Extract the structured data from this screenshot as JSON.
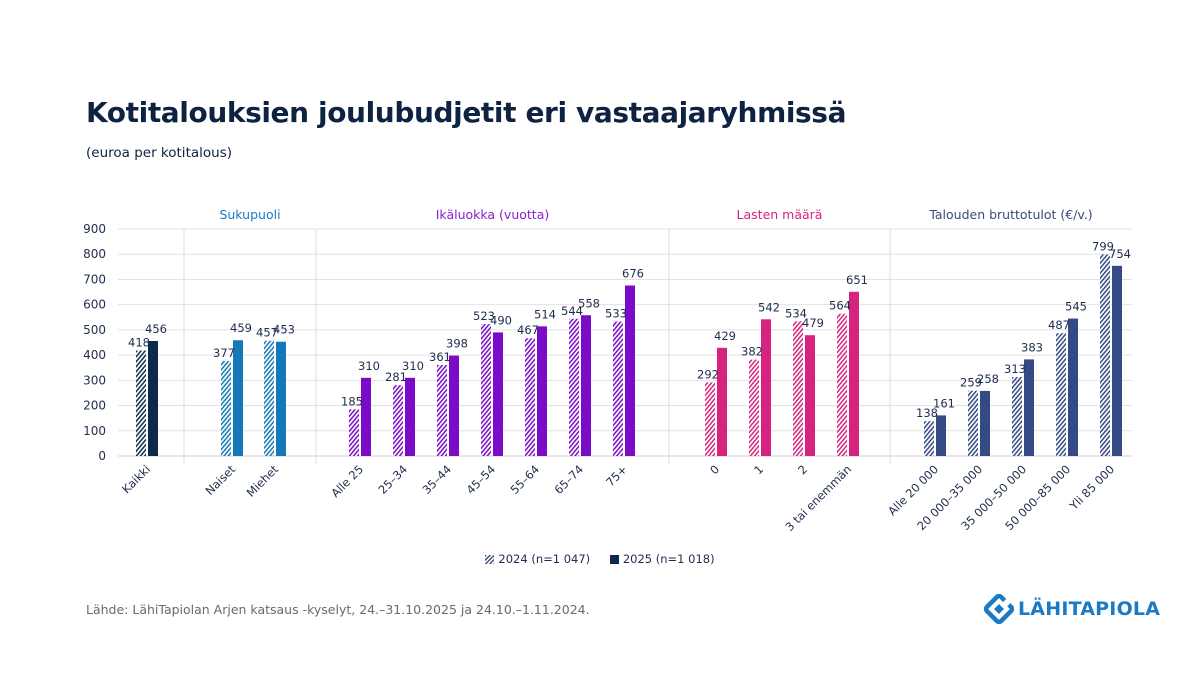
{
  "title": "Kotitalouksien joulubudjetit eri vastaajaryhmissä",
  "subtitle": "(euroa per kotitalous)",
  "legend": {
    "series_2024": "2024 (n=1 047)",
    "series_2025": "2025 (n=1 018)"
  },
  "source": "Lähde: LähiTapiolan Arjen katsaus -kyselyt, 24.–31.10.2025 ja 24.10.–1.11.2024.",
  "logo": {
    "text": "LÄHITAPIOLA",
    "icon": "lahitapiola-logo-icon",
    "color": "#1a7bc4"
  },
  "chart_data": {
    "type": "bar",
    "title": "Kotitalouksien joulubudjetit eri vastaajaryhmissä",
    "subtitle": "(euroa per kotitalous)",
    "ylabel": "",
    "xlabel": "",
    "ylim": [
      0,
      900
    ],
    "yticks": [
      0,
      100,
      200,
      300,
      400,
      500,
      600,
      700,
      800,
      900
    ],
    "grid": true,
    "legend_position": "bottom",
    "series_names": [
      "2024 (n=1 047)",
      "2025 (n=1 018)"
    ],
    "series_styles": [
      "hatched",
      "solid"
    ],
    "groups": [
      {
        "name": "",
        "color": "#0d2a4d",
        "header_color": "#1a7bc4",
        "categories": [
          "Kaikki"
        ],
        "series": [
          {
            "name": "2024",
            "values": [
              418
            ]
          },
          {
            "name": "2025",
            "values": [
              456
            ]
          }
        ]
      },
      {
        "name": "Sukupuoli",
        "color": "#1578b8",
        "header_color": "#1a7bc4",
        "categories": [
          "Naiset",
          "Miehet"
        ],
        "series": [
          {
            "name": "2024",
            "values": [
              377,
              457
            ]
          },
          {
            "name": "2025",
            "values": [
              459,
              453
            ]
          }
        ]
      },
      {
        "name": "Ikäluokka (vuotta)",
        "color": "#7a0bc7",
        "header_color": "#8a1fcf",
        "categories": [
          "Alle 25",
          "25–34",
          "35–44",
          "45–54",
          "55–64",
          "65–74",
          "75+"
        ],
        "series": [
          {
            "name": "2024",
            "values": [
              185,
              281,
              361,
              523,
              467,
              544,
              533
            ]
          },
          {
            "name": "2025",
            "values": [
              310,
              310,
              398,
              490,
              514,
              558,
              676
            ]
          }
        ]
      },
      {
        "name": "Lasten määrä",
        "color": "#d6237f",
        "header_color": "#d6237f",
        "categories": [
          "0",
          "1",
          "2",
          "3 tai enemmän"
        ],
        "series": [
          {
            "name": "2024",
            "values": [
              292,
              382,
              534,
              564
            ]
          },
          {
            "name": "2025",
            "values": [
              429,
              542,
              479,
              651
            ]
          }
        ]
      },
      {
        "name": "Talouden bruttotulot (€/v.)",
        "color": "#354a85",
        "header_color": "#3a4a7a",
        "categories": [
          "Alle 20 000",
          "20 000–35 000",
          "35 000–50 000",
          "50 000–85 000",
          "Yli 85 000"
        ],
        "series": [
          {
            "name": "2024",
            "values": [
              138,
              259,
              313,
              487,
              799
            ]
          },
          {
            "name": "2025",
            "values": [
              161,
              258,
              383,
              545,
              754
            ]
          }
        ]
      }
    ]
  }
}
